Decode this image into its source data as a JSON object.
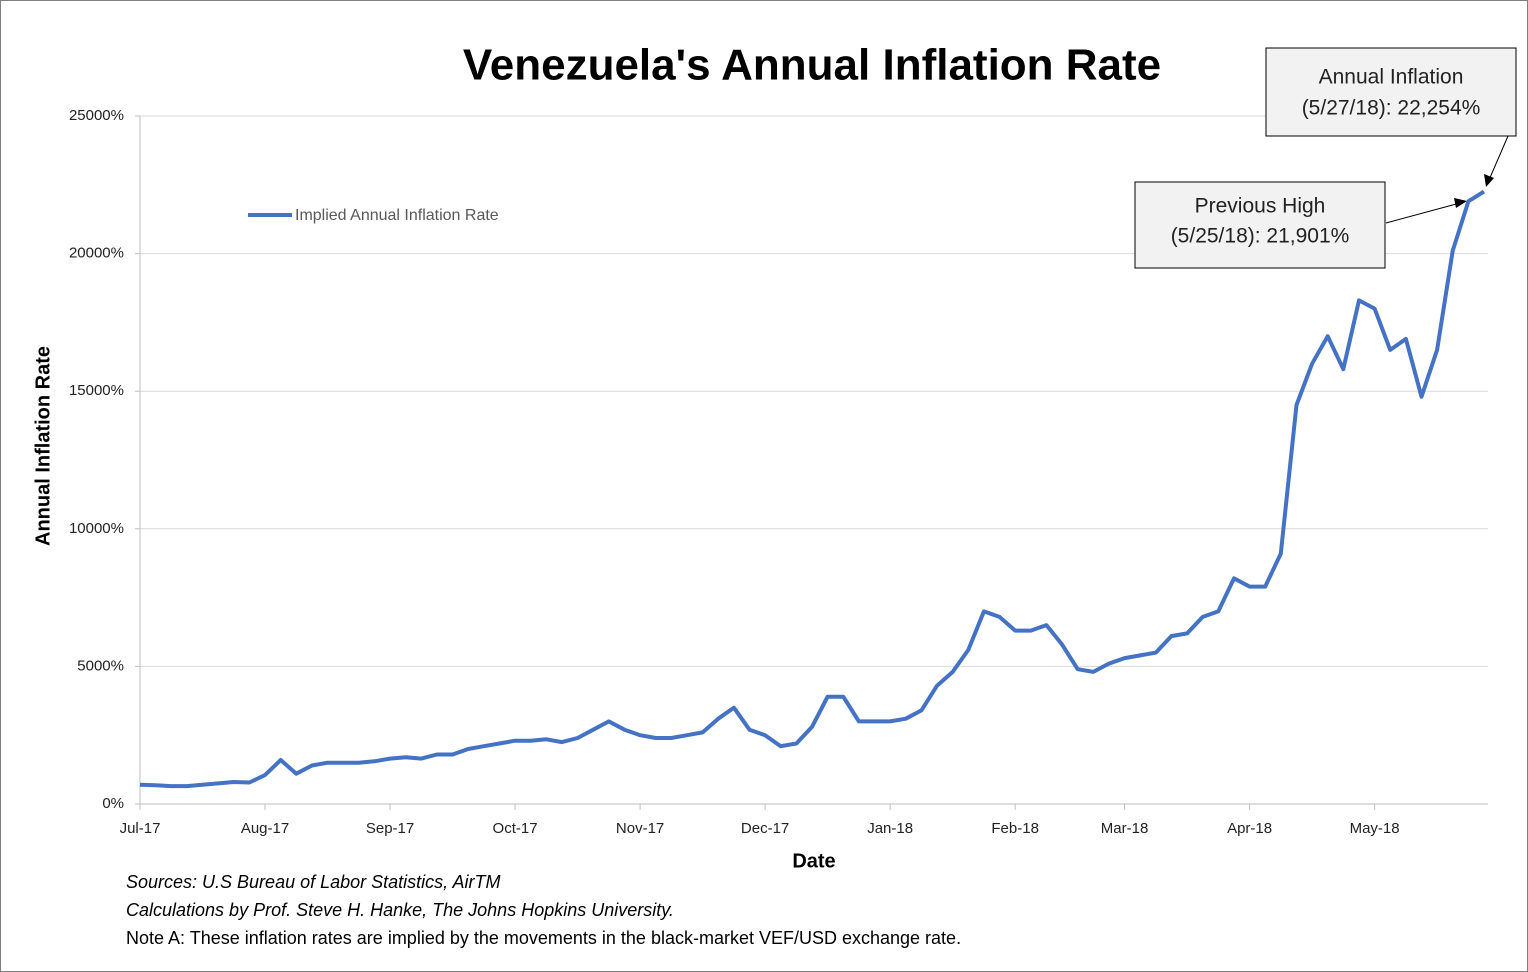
{
  "chart_data": {
    "type": "line",
    "title": "Venezuela's Annual Inflation Rate",
    "x_label": "Date",
    "y_label": "Annual Inflation Rate",
    "categories": [
      "Jul-17",
      null,
      null,
      null,
      null,
      null,
      null,
      null,
      "Aug-17",
      null,
      null,
      null,
      null,
      null,
      null,
      null,
      "Sep-17",
      null,
      null,
      null,
      null,
      null,
      null,
      null,
      "Oct-17",
      null,
      null,
      null,
      null,
      null,
      null,
      null,
      "Nov-17",
      null,
      null,
      null,
      null,
      null,
      null,
      null,
      "Dec-17",
      null,
      null,
      null,
      null,
      null,
      null,
      null,
      "Jan-18",
      null,
      null,
      null,
      null,
      null,
      null,
      null,
      "Feb-18",
      null,
      null,
      null,
      null,
      null,
      null,
      "Mar-18",
      null,
      null,
      null,
      null,
      null,
      null,
      null,
      "Apr-18",
      null,
      null,
      null,
      null,
      null,
      null,
      null,
      "May-18",
      null,
      null,
      null,
      null,
      null,
      null,
      null
    ],
    "series": [
      {
        "name": "Implied Annual Inflation Rate",
        "color": "#4472c4",
        "values": [
          700,
          680,
          650,
          650,
          700,
          750,
          800,
          780,
          1050,
          1600,
          1100,
          1400,
          1500,
          1500,
          1500,
          1550,
          1650,
          1700,
          1650,
          1800,
          1800,
          2000,
          2100,
          2200,
          2300,
          2300,
          2350,
          2250,
          2400,
          2700,
          3000,
          2700,
          2500,
          2400,
          2400,
          2500,
          2600,
          3100,
          3500,
          2700,
          2500,
          2100,
          2200,
          2800,
          3900,
          3900,
          3000,
          3000,
          3000,
          3100,
          3400,
          4300,
          4800,
          5600,
          7000,
          6800,
          6300,
          6300,
          6500,
          5800,
          4900,
          4800,
          5100,
          5300,
          5400,
          5500,
          6100,
          6200,
          6800,
          7000,
          8200,
          7900,
          7900,
          9100,
          14500,
          16000,
          17000,
          15800,
          18300,
          18000,
          16500,
          16900,
          14800,
          16500,
          20100,
          21901,
          22254
        ]
      }
    ],
    "ylim": [
      0,
      25000
    ],
    "yticks": [
      {
        "value": 0,
        "label": "0%"
      },
      {
        "value": 5000,
        "label": "5000%"
      },
      {
        "value": 10000,
        "label": "10000%"
      },
      {
        "value": 15000,
        "label": "15000%"
      },
      {
        "value": 20000,
        "label": "20000%"
      },
      {
        "value": 25000,
        "label": "25000%"
      }
    ],
    "grid": true,
    "legend": "upper-left",
    "annotations": [
      {
        "lines": [
          "Annual Inflation",
          "(5/27/18): 22,254%"
        ]
      },
      {
        "lines": [
          "Previous High",
          "(5/25/18): 21,901%"
        ]
      }
    ],
    "notes": [
      "Sources: U.S Bureau of Labor Statistics, AirTM",
      "Calculations by Prof. Steve H. Hanke, The Johns Hopkins University.",
      "Note A: These inflation rates are implied by the movements in the black-market VEF/USD exchange rate."
    ]
  }
}
